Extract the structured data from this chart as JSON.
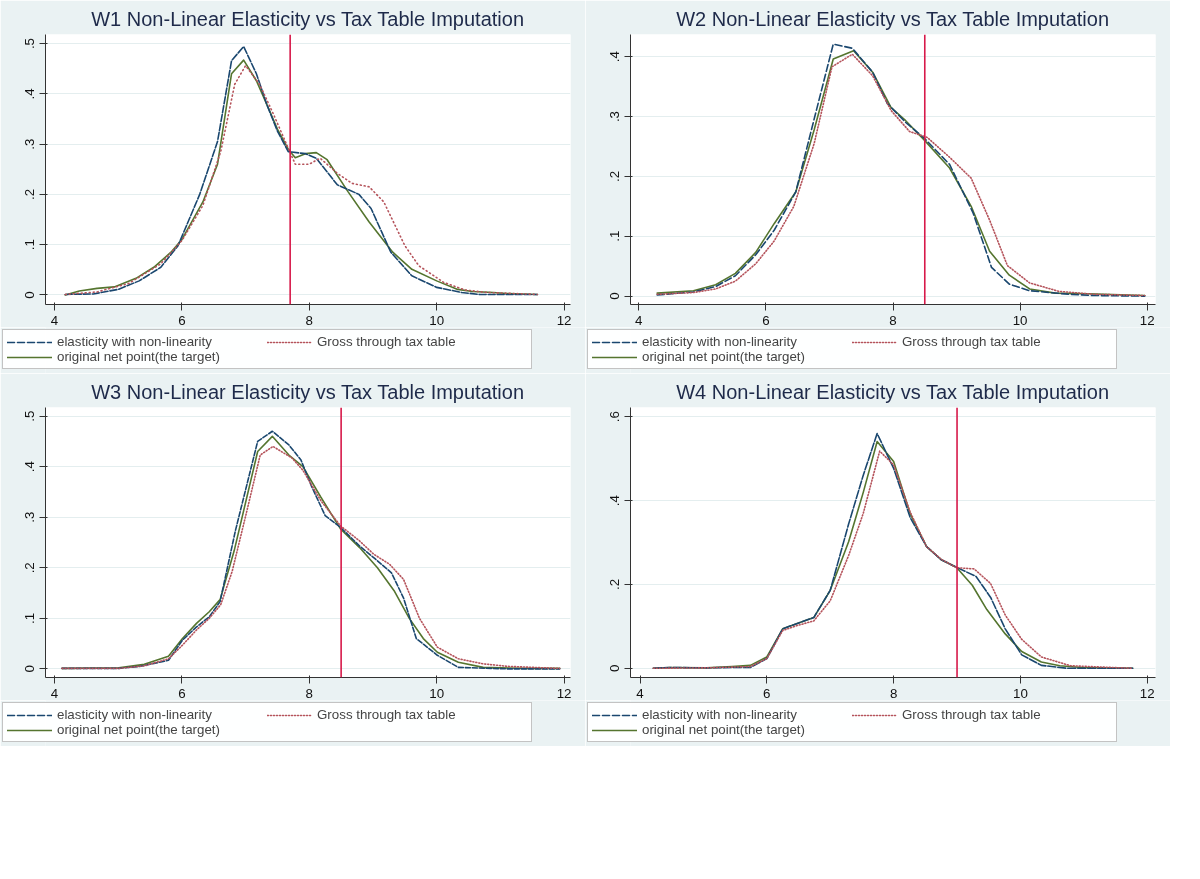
{
  "chart_data": [
    {
      "type": "line",
      "title": "W1 Non-Linear Elasticity vs Tax Table Imputation",
      "xlim": [
        3.86,
        12.1
      ],
      "ylim": [
        -0.019,
        0.518
      ],
      "xticks": [
        4,
        6,
        8,
        10,
        12
      ],
      "yticks": [
        {
          "value": 0,
          "label": "0"
        },
        {
          "value": 0.1,
          "label": ".1"
        },
        {
          "value": 0.2,
          "label": ".2"
        },
        {
          "value": 0.3,
          "label": ".3"
        },
        {
          "value": 0.4,
          "label": ".4"
        },
        {
          "value": 0.5,
          "label": ".5"
        }
      ],
      "grid": "y",
      "legend": "bottom",
      "ref_lines": [
        {
          "axis": "x",
          "value": 7.7,
          "color": "#d7194a"
        }
      ],
      "series": [
        {
          "name": "elasticity with non-linearity",
          "color": "#1a476f",
          "line_style": "dashed",
          "x": [
            4.17,
            4.61,
            5.0,
            5.33,
            5.67,
            5.94,
            6.28,
            6.56,
            6.78,
            6.97,
            7.17,
            7.33,
            7.5,
            7.67,
            7.94,
            8.11,
            8.44,
            8.78,
            8.97,
            9.28,
            9.61,
            10.0,
            10.39,
            10.67,
            11.58
          ],
          "values": [
            0.001,
            0.002,
            0.011,
            0.028,
            0.055,
            0.098,
            0.2,
            0.305,
            0.466,
            0.494,
            0.44,
            0.38,
            0.326,
            0.285,
            0.281,
            0.272,
            0.219,
            0.2,
            0.172,
            0.085,
            0.038,
            0.015,
            0.005,
            0.001,
            0.001
          ]
        },
        {
          "name": "Gross through tax table",
          "color": "#b5535b",
          "line_style": "dotted",
          "x": [
            4.17,
            4.67,
            5.17,
            5.67,
            6.0,
            6.33,
            6.61,
            6.83,
            7.0,
            7.22,
            7.44,
            7.67,
            7.78,
            8.0,
            8.17,
            8.44,
            8.67,
            8.94,
            9.17,
            9.5,
            9.72,
            10.11,
            10.44,
            10.78,
            11.58
          ],
          "values": [
            0.001,
            0.006,
            0.023,
            0.062,
            0.108,
            0.178,
            0.285,
            0.419,
            0.456,
            0.419,
            0.359,
            0.292,
            0.26,
            0.26,
            0.272,
            0.242,
            0.222,
            0.215,
            0.185,
            0.098,
            0.058,
            0.025,
            0.01,
            0.005,
            0.001
          ]
        },
        {
          "name": "original net point(the target)",
          "color": "#55752f",
          "line_style": "solid",
          "x": [
            4.17,
            4.39,
            4.67,
            4.94,
            5.28,
            5.56,
            5.83,
            6.0,
            6.33,
            6.56,
            6.78,
            6.97,
            7.17,
            7.33,
            7.5,
            7.67,
            7.78,
            7.94,
            8.11,
            8.28,
            8.61,
            8.94,
            9.31,
            9.61,
            10.0,
            10.33,
            10.56,
            10.89,
            11.1,
            11.58
          ],
          "values": [
            0.0,
            0.008,
            0.013,
            0.016,
            0.033,
            0.055,
            0.085,
            0.11,
            0.185,
            0.26,
            0.44,
            0.467,
            0.426,
            0.38,
            0.33,
            0.29,
            0.273,
            0.281,
            0.283,
            0.269,
            0.205,
            0.145,
            0.085,
            0.051,
            0.028,
            0.011,
            0.007,
            0.005,
            0.003,
            0.001
          ]
        }
      ]
    },
    {
      "type": "line",
      "title": "W2 Non-Linear Elasticity vs Tax Table Imputation",
      "xlim": [
        3.87,
        12.13
      ],
      "ylim": [
        -0.014,
        0.437
      ],
      "xticks": [
        4,
        6,
        8,
        10,
        12
      ],
      "yticks": [
        {
          "value": 0,
          "label": "0"
        },
        {
          "value": 0.1,
          "label": ".1"
        },
        {
          "value": 0.2,
          "label": ".2"
        },
        {
          "value": 0.3,
          "label": ".3"
        },
        {
          "value": 0.4,
          "label": ".4"
        }
      ],
      "grid": "y",
      "legend": "bottom",
      "ref_lines": [
        {
          "axis": "x",
          "value": 8.5,
          "color": "#d7194a"
        }
      ],
      "series": [
        {
          "name": "elasticity with non-linearity",
          "color": "#1a476f",
          "line_style": "dashed",
          "x": [
            4.29,
            4.86,
            5.21,
            5.52,
            5.84,
            6.13,
            6.47,
            6.76,
            7.06,
            7.36,
            7.68,
            7.91,
            8.2,
            8.49,
            8.89,
            9.26,
            9.55,
            9.83,
            10.15,
            10.78,
            11.18,
            11.96
          ],
          "values": [
            0.002,
            0.007,
            0.016,
            0.034,
            0.069,
            0.11,
            0.174,
            0.296,
            0.421,
            0.414,
            0.374,
            0.322,
            0.29,
            0.264,
            0.22,
            0.139,
            0.048,
            0.02,
            0.009,
            0.003,
            0.001,
            0.0
          ]
        },
        {
          "name": "Gross through tax table",
          "color": "#b5535b",
          "line_style": "dotted",
          "x": [
            4.29,
            4.86,
            5.21,
            5.52,
            5.84,
            6.13,
            6.44,
            6.76,
            7.04,
            7.36,
            7.68,
            7.97,
            8.26,
            8.54,
            8.89,
            9.23,
            9.52,
            9.8,
            10.15,
            10.61,
            11.18,
            11.96
          ],
          "values": [
            0.003,
            0.006,
            0.012,
            0.025,
            0.054,
            0.092,
            0.15,
            0.255,
            0.383,
            0.404,
            0.368,
            0.31,
            0.275,
            0.265,
            0.232,
            0.197,
            0.127,
            0.051,
            0.022,
            0.008,
            0.003,
            0.001
          ]
        },
        {
          "name": "original net point(the target)",
          "color": "#55752f",
          "line_style": "solid",
          "x": [
            4.29,
            4.86,
            5.21,
            5.52,
            5.84,
            6.13,
            6.47,
            6.76,
            7.06,
            7.38,
            7.68,
            7.97,
            8.2,
            8.49,
            8.89,
            9.23,
            9.52,
            9.83,
            10.15,
            10.55,
            11.07,
            11.96
          ],
          "values": [
            0.005,
            0.009,
            0.019,
            0.038,
            0.073,
            0.121,
            0.174,
            0.278,
            0.396,
            0.41,
            0.374,
            0.315,
            0.293,
            0.261,
            0.214,
            0.15,
            0.075,
            0.035,
            0.012,
            0.005,
            0.004,
            0.001
          ]
        }
      ]
    },
    {
      "type": "line",
      "title": "W3 Non-Linear Elasticity vs Tax Table Imputation",
      "xlim": [
        3.86,
        12.1
      ],
      "ylim": [
        -0.017,
        0.517
      ],
      "xticks": [
        4,
        6,
        8,
        10,
        12
      ],
      "yticks": [
        {
          "value": 0,
          "label": "0"
        },
        {
          "value": 0.1,
          "label": ".1"
        },
        {
          "value": 0.2,
          "label": ".2"
        },
        {
          "value": 0.3,
          "label": ".3"
        },
        {
          "value": 0.4,
          "label": ".4"
        },
        {
          "value": 0.5,
          "label": ".5"
        }
      ],
      "grid": "y",
      "legend": "bottom",
      "ref_lines": [
        {
          "axis": "x",
          "value": 8.5,
          "color": "#d7194a"
        }
      ],
      "series": [
        {
          "name": "elasticity with non-linearity",
          "color": "#1a476f",
          "line_style": "dashed",
          "x": [
            4.12,
            5.01,
            5.34,
            5.79,
            6.01,
            6.23,
            6.43,
            6.6,
            6.84,
            7.19,
            7.42,
            7.68,
            7.87,
            8.04,
            8.25,
            8.49,
            8.79,
            9.04,
            9.29,
            9.48,
            9.68,
            10.01,
            10.34,
            11.12,
            11.93
          ],
          "values": [
            0.001,
            0.001,
            0.005,
            0.017,
            0.057,
            0.083,
            0.103,
            0.133,
            0.273,
            0.45,
            0.47,
            0.443,
            0.413,
            0.36,
            0.303,
            0.28,
            0.243,
            0.217,
            0.19,
            0.14,
            0.06,
            0.027,
            0.003,
            0.0,
            0.0
          ]
        },
        {
          "name": "Gross through tax table",
          "color": "#b5535b",
          "line_style": "dotted",
          "x": [
            4.12,
            5.01,
            5.41,
            5.79,
            6.01,
            6.23,
            6.43,
            6.61,
            6.79,
            7.01,
            7.23,
            7.43,
            7.73,
            7.9,
            8.18,
            8.49,
            8.79,
            9.01,
            9.26,
            9.48,
            9.73,
            10.01,
            10.34,
            10.73,
            11.12,
            11.93
          ],
          "values": [
            0.001,
            0.001,
            0.006,
            0.02,
            0.047,
            0.077,
            0.1,
            0.127,
            0.193,
            0.307,
            0.423,
            0.44,
            0.417,
            0.393,
            0.333,
            0.283,
            0.253,
            0.227,
            0.207,
            0.177,
            0.1,
            0.043,
            0.02,
            0.01,
            0.005,
            0.001
          ]
        },
        {
          "name": "original net point(the target)",
          "color": "#55752f",
          "line_style": "solid",
          "x": [
            4.12,
            5.01,
            5.41,
            5.79,
            6.01,
            6.23,
            6.43,
            6.6,
            6.82,
            7.19,
            7.42,
            7.68,
            7.9,
            8.18,
            8.49,
            8.79,
            9.07,
            9.34,
            9.57,
            9.79,
            10.01,
            10.34,
            10.73,
            11.4,
            11.93
          ],
          "values": [
            0.001,
            0.002,
            0.009,
            0.025,
            0.06,
            0.09,
            0.113,
            0.137,
            0.233,
            0.43,
            0.46,
            0.423,
            0.4,
            0.34,
            0.277,
            0.24,
            0.2,
            0.153,
            0.1,
            0.06,
            0.033,
            0.013,
            0.003,
            0.001,
            0.001
          ]
        }
      ]
    },
    {
      "type": "line",
      "title": "W4 Non-Linear Elasticity vs Tax Table Imputation",
      "xlim": [
        3.85,
        12.13
      ],
      "ylim": [
        -0.022,
        0.622
      ],
      "xticks": [
        4,
        6,
        8,
        10,
        12
      ],
      "yticks": [
        {
          "value": 0,
          "label": "0"
        },
        {
          "value": 0.2,
          "label": ".2"
        },
        {
          "value": 0.4,
          "label": ".4"
        },
        {
          "value": 0.6,
          "label": ".6"
        }
      ],
      "grid": "y",
      "legend": "bottom",
      "ref_lines": [
        {
          "axis": "x",
          "value": 9,
          "color": "#d7194a"
        }
      ],
      "series": [
        {
          "name": "elasticity with non-linearity",
          "color": "#1a476f",
          "line_style": "dashed",
          "x": [
            4.21,
            4.47,
            5.05,
            5.45,
            5.74,
            6.0,
            6.25,
            6.48,
            6.74,
            7.0,
            7.29,
            7.52,
            7.74,
            8.0,
            8.26,
            8.52,
            8.75,
            8.99,
            9.3,
            9.53,
            9.76,
            10.02,
            10.33,
            10.74,
            11.77
          ],
          "values": [
            0.0,
            0.002,
            0.001,
            0.002,
            0.002,
            0.023,
            0.094,
            0.107,
            0.121,
            0.186,
            0.344,
            0.46,
            0.56,
            0.477,
            0.36,
            0.29,
            0.259,
            0.241,
            0.219,
            0.169,
            0.094,
            0.032,
            0.007,
            0.0,
            0.0
          ]
        },
        {
          "name": "Gross through tax table",
          "color": "#b5535b",
          "line_style": "dotted",
          "x": [
            4.21,
            5.05,
            5.74,
            6.0,
            6.25,
            6.48,
            6.74,
            7.0,
            7.29,
            7.52,
            7.78,
            8.0,
            8.26,
            8.52,
            8.75,
            8.99,
            9.27,
            9.53,
            9.76,
            10.02,
            10.33,
            10.79,
            11.77
          ],
          "values": [
            0.0,
            0.001,
            0.004,
            0.023,
            0.09,
            0.102,
            0.113,
            0.161,
            0.269,
            0.369,
            0.518,
            0.485,
            0.373,
            0.29,
            0.26,
            0.24,
            0.237,
            0.202,
            0.127,
            0.069,
            0.027,
            0.006,
            0.0
          ]
        },
        {
          "name": "original net point(the target)",
          "color": "#55752f",
          "line_style": "solid",
          "x": [
            4.21,
            4.47,
            5.05,
            5.45,
            5.74,
            6.0,
            6.25,
            6.48,
            6.74,
            7.0,
            7.29,
            7.52,
            7.74,
            8.0,
            8.26,
            8.52,
            8.75,
            8.99,
            9.24,
            9.47,
            9.76,
            10.02,
            10.33,
            10.62,
            10.97,
            11.77
          ],
          "values": [
            0.0,
            0.002,
            0.001,
            0.004,
            0.007,
            0.027,
            0.094,
            0.107,
            0.121,
            0.186,
            0.302,
            0.419,
            0.541,
            0.493,
            0.369,
            0.29,
            0.259,
            0.241,
            0.198,
            0.14,
            0.082,
            0.04,
            0.015,
            0.006,
            0.002,
            0.0
          ]
        }
      ]
    }
  ]
}
